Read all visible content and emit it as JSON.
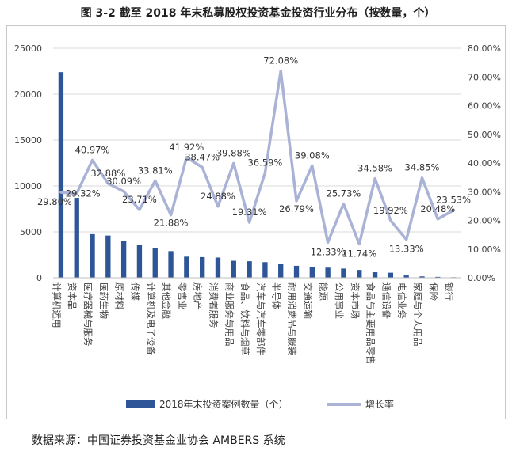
{
  "title": "图 3-2  截至 2018 年末私募股权投资基金投资行业分布（按数量，个）",
  "source": "数据来源：中国证券投资基金业协会 AMBERS 系统",
  "colors": {
    "bar": "#2e5597",
    "line": "#aab3d6",
    "grid": "#d9d9d9",
    "text": "#404040"
  },
  "chart_data": {
    "type": "bar",
    "categories": [
      "计算机运用",
      "资本品",
      "医疗器械与服务",
      "医药生物",
      "原材料",
      "传媒",
      "计算机及电子设备",
      "其他金融",
      "零售业",
      "房地产",
      "消费者服务",
      "商业服务与用品",
      "食品、饮料与烟草",
      "汽车与汽车零部件",
      "半导体",
      "耐用消费品与服装",
      "交通运输",
      "能源",
      "公用事业",
      "资本市场",
      "食品与主要用品零售",
      "通信设备",
      "电信业务",
      "家庭与个人用品",
      "保险",
      "银行"
    ],
    "series": [
      {
        "name": "2018年末投资案例数量（个）",
        "type": "bar",
        "axis": "left",
        "values": [
          22400,
          8700,
          4750,
          4600,
          4050,
          3600,
          3200,
          2900,
          2300,
          2250,
          2200,
          1850,
          1800,
          1700,
          1550,
          1300,
          1200,
          1100,
          1000,
          850,
          600,
          550,
          250,
          150,
          100,
          60
        ]
      },
      {
        "name": "增长率",
        "type": "line",
        "axis": "right",
        "values": [
          29.8,
          29.32,
          40.97,
          32.88,
          30.09,
          23.71,
          33.81,
          21.88,
          41.92,
          38.47,
          24.88,
          39.88,
          19.31,
          36.59,
          72.08,
          26.79,
          39.08,
          12.33,
          25.73,
          11.74,
          34.58,
          19.92,
          13.33,
          34.85,
          20.48,
          23.53
        ],
        "labels": [
          "29.80%",
          "29.32%",
          "40.97%",
          "32.88%",
          "30.09%",
          "23.71%",
          "33.81%",
          "21.88%",
          "41.92%",
          "38.47%",
          "24.88%",
          "39.88%",
          "19.31%",
          "36.59%",
          "72.08%",
          "26.79%",
          "39.08%",
          "12.33%",
          "25.73%",
          "11.74%",
          "34.58%",
          "19.92%",
          "13.33%",
          "34.85%",
          "20.48%",
          "23.53%"
        ]
      }
    ],
    "ylim": [
      0,
      25000
    ],
    "yticks": [
      "0",
      "5000",
      "10000",
      "15000",
      "20000",
      "25000"
    ],
    "y2lim": [
      0,
      80
    ],
    "y2ticks": [
      "0.00%",
      "10.00%",
      "20.00%",
      "30.00%",
      "40.00%",
      "50.00%",
      "60.00%",
      "70.00%",
      "80.00%"
    ],
    "grid": true,
    "legend_position": "bottom"
  }
}
